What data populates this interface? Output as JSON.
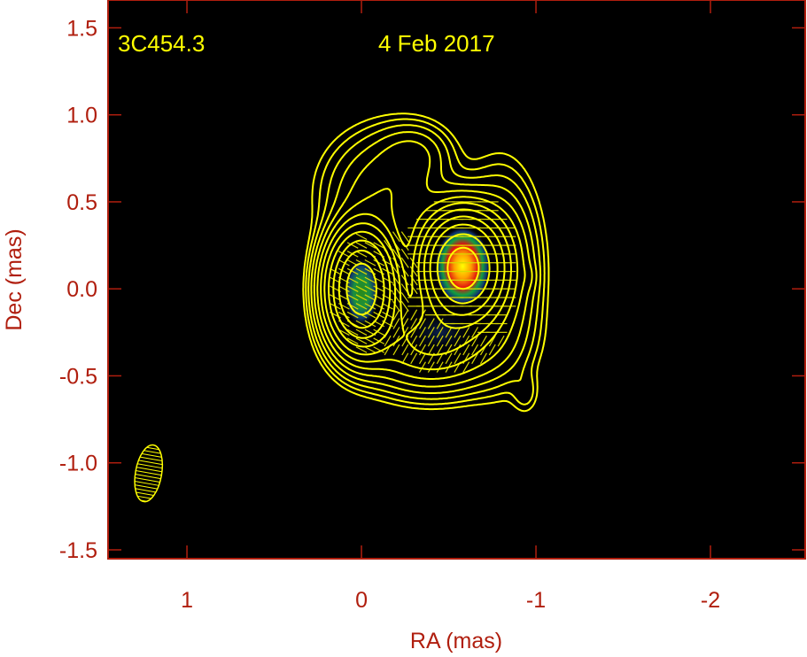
{
  "chart_data": {
    "type": "heatmap",
    "subtype": "radio map: total intensity contours + polarized intensity color + EVPA ticks",
    "source_label": "3C454.3",
    "date_label": "4 Feb 2017",
    "xlabel": "RA (mas)",
    "ylabel": "Dec (mas)",
    "xlim": [
      1.452,
      -2.543
    ],
    "ylim": [
      -1.551,
      1.66
    ],
    "x_ticks": [
      1,
      0,
      -1,
      -2
    ],
    "x_tick_labels": [
      "1",
      "0",
      "-1",
      "-2"
    ],
    "y_ticks": [
      1.5,
      1.0,
      0.5,
      0.0,
      -0.5,
      -1.0,
      -1.5
    ],
    "y_tick_labels": [
      "1.5",
      "1.0",
      "0.5",
      "0.0",
      "-0.5",
      "-1.0",
      "-1.5"
    ],
    "grid": false,
    "colors": {
      "background": "#000000",
      "axis": "#b01e0e",
      "contour": "#ffff00",
      "text": "#ffff00"
    },
    "intensity_components": [
      {
        "ra": 0.0,
        "dec": 0.0,
        "amp": 1.0,
        "sra": 0.1,
        "sdec": 0.17
      },
      {
        "ra": -0.58,
        "dec": 0.12,
        "amp": 0.9,
        "sra": 0.12,
        "sdec": 0.16
      },
      {
        "ra": -0.4,
        "dec": -0.3,
        "amp": 0.12,
        "sra": 0.22,
        "sdec": 0.15
      },
      {
        "ra": -0.15,
        "dec": 0.55,
        "amp": 0.04,
        "sra": 0.2,
        "sdec": 0.2
      },
      {
        "ra": -0.3,
        "dec": 0.78,
        "amp": 0.02,
        "sra": 0.12,
        "sdec": 0.1
      },
      {
        "ra": -0.8,
        "dec": 0.1,
        "amp": 0.05,
        "sra": 0.12,
        "sdec": 0.3
      },
      {
        "ra": -0.96,
        "dec": 0.07,
        "amp": 0.007,
        "sra": 0.03,
        "sdec": 0.05
      },
      {
        "ra": -0.94,
        "dec": -0.6,
        "amp": 0.007,
        "sra": 0.05,
        "sdec": 0.08
      }
    ],
    "contour_levels": [
      0.004,
      0.0064,
      0.0102,
      0.0164,
      0.0262,
      0.0419,
      0.0671,
      0.107,
      0.172,
      0.275,
      0.44,
      0.7
    ],
    "polarization_components": [
      {
        "ra": 0.0,
        "dec": -0.02,
        "amp": 0.5,
        "sra": 0.1,
        "sdec": 0.19,
        "evpa_deg": -28
      },
      {
        "ra": -0.58,
        "dec": 0.13,
        "amp": 1.0,
        "sra": 0.15,
        "sdec": 0.22,
        "evpa_deg": 0
      },
      {
        "ra": -0.45,
        "dec": -0.28,
        "amp": 0.35,
        "sra": 0.2,
        "sdec": 0.12,
        "evpa_deg": 60
      },
      {
        "ra": -0.25,
        "dec": 0.1,
        "amp": 0.25,
        "sra": 0.08,
        "sdec": 0.15,
        "evpa_deg": -55
      }
    ],
    "beam": {
      "ra": 1.22,
      "dec": -1.06,
      "major_mas": 0.33,
      "minor_mas": 0.15,
      "pa_deg": -10
    }
  }
}
